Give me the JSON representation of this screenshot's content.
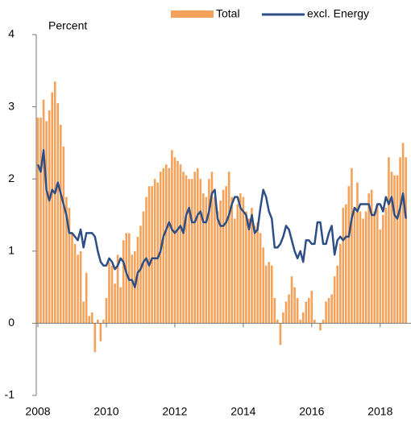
{
  "chart_data": {
    "type": "bar_line",
    "y_axis_label": "Percent",
    "categories": [
      "2008",
      null,
      null,
      null,
      null,
      null,
      null,
      null,
      null,
      null,
      null,
      null,
      null,
      null,
      null,
      null,
      null,
      null,
      null,
      null,
      null,
      null,
      null,
      null,
      "2010",
      null,
      null,
      null,
      null,
      null,
      null,
      null,
      null,
      null,
      null,
      null,
      null,
      null,
      null,
      null,
      null,
      null,
      null,
      null,
      null,
      null,
      null,
      null,
      "2012",
      null,
      null,
      null,
      null,
      null,
      null,
      null,
      null,
      null,
      null,
      null,
      null,
      null,
      null,
      null,
      null,
      null,
      null,
      null,
      null,
      null,
      null,
      null,
      "2014",
      null,
      null,
      null,
      null,
      null,
      null,
      null,
      null,
      null,
      null,
      null,
      null,
      null,
      null,
      null,
      null,
      null,
      null,
      null,
      null,
      null,
      null,
      null,
      "2016",
      null,
      null,
      null,
      null,
      null,
      null,
      null,
      null,
      null,
      null,
      null,
      null,
      null,
      null,
      null,
      null,
      null,
      null,
      null,
      null,
      null,
      null,
      null,
      "2018",
      null,
      null,
      null,
      null,
      null,
      null,
      null,
      null,
      null
    ],
    "series": [
      {
        "name": "Total",
        "kind": "bar",
        "color": "#f4a259",
        "values": [
          2.85,
          2.85,
          3.1,
          2.8,
          2.95,
          3.2,
          3.35,
          3.05,
          2.75,
          2.45,
          1.75,
          1.6,
          1.25,
          1.1,
          0.95,
          1.0,
          0.3,
          0.7,
          0.1,
          0.15,
          -0.4,
          0.05,
          -0.25,
          0.05,
          0.35,
          0.85,
          0.8,
          0.55,
          0.95,
          0.5,
          1.15,
          1.25,
          1.25,
          0.95,
          1.0,
          1.2,
          1.35,
          1.55,
          1.75,
          1.9,
          1.9,
          2.0,
          1.95,
          2.1,
          2.15,
          2.2,
          2.15,
          2.4,
          2.3,
          2.25,
          2.2,
          2.1,
          2.05,
          2.0,
          2.0,
          2.1,
          2.15,
          2.0,
          1.8,
          1.75,
          2.0,
          2.1,
          1.75,
          1.55,
          1.7,
          1.85,
          1.9,
          2.1,
          1.75,
          1.45,
          1.65,
          1.8,
          1.75,
          1.55,
          1.45,
          1.6,
          1.35,
          1.4,
          1.25,
          1.05,
          0.8,
          0.85,
          0.8,
          0.35,
          0.05,
          -0.3,
          0.15,
          0.3,
          0.4,
          0.65,
          0.5,
          0.35,
          0.05,
          0.15,
          0.3,
          0.35,
          0.45,
          0.05,
          0.0,
          -0.1,
          0.05,
          0.3,
          0.35,
          0.4,
          0.65,
          0.8,
          1.1,
          1.6,
          1.65,
          1.9,
          2.15,
          1.55,
          1.95,
          1.55,
          1.45,
          1.55,
          1.8,
          1.85,
          1.55,
          1.65,
          1.3,
          1.5,
          1.6,
          2.3,
          2.1,
          2.05,
          2.05,
          2.3,
          2.5,
          2.3
        ]
      },
      {
        "name": "excl. Energy",
        "kind": "line",
        "color": "#2d4f86",
        "values": [
          2.2,
          2.1,
          2.4,
          1.85,
          1.7,
          1.85,
          1.8,
          1.95,
          1.8,
          1.65,
          1.5,
          1.25,
          1.25,
          1.2,
          1.15,
          1.3,
          1.05,
          1.25,
          1.25,
          1.25,
          1.2,
          1.0,
          0.85,
          0.8,
          0.8,
          0.9,
          0.85,
          0.75,
          0.8,
          0.9,
          0.85,
          0.7,
          0.6,
          0.6,
          0.5,
          0.7,
          0.75,
          0.85,
          0.9,
          0.8,
          0.9,
          0.9,
          0.9,
          1.0,
          1.2,
          1.3,
          1.4,
          1.3,
          1.25,
          1.3,
          1.35,
          1.25,
          1.5,
          1.6,
          1.4,
          1.4,
          1.5,
          1.55,
          1.4,
          1.4,
          1.55,
          1.8,
          1.85,
          1.45,
          1.35,
          1.35,
          1.4,
          1.5,
          1.65,
          1.75,
          1.75,
          1.6,
          1.55,
          1.5,
          1.3,
          1.5,
          1.25,
          1.3,
          1.6,
          1.85,
          1.75,
          1.55,
          1.45,
          1.05,
          1.05,
          1.1,
          1.2,
          1.35,
          1.3,
          1.15,
          1.0,
          0.9,
          1.0,
          0.85,
          1.15,
          1.15,
          1.1,
          1.1,
          1.4,
          1.4,
          1.1,
          1.1,
          1.25,
          1.35,
          0.95,
          1.15,
          1.2,
          1.15,
          1.2,
          1.2,
          1.45,
          1.6,
          1.55,
          1.65,
          1.65,
          1.65,
          1.65,
          1.5,
          1.5,
          1.65,
          1.65,
          1.55,
          1.75,
          1.65,
          1.75,
          1.5,
          1.45,
          1.6,
          1.8,
          1.45
        ]
      }
    ],
    "ylim": [
      -1,
      4
    ],
    "yticks": [
      -1,
      0,
      1,
      2,
      3,
      4
    ],
    "grid": false,
    "legend": "top"
  }
}
